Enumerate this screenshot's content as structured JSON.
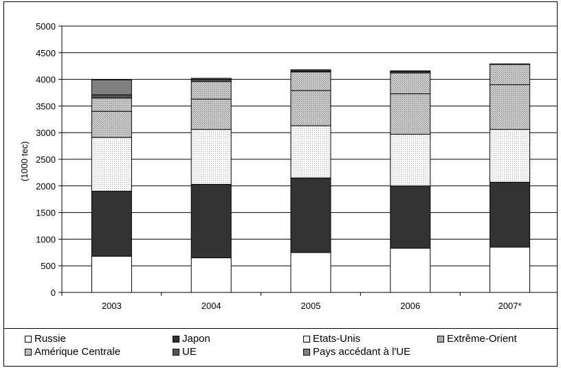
{
  "chart_data": {
    "type": "bar",
    "stacked": true,
    "title": "",
    "xlabel": "",
    "ylabel": "(1000 tec)",
    "ylim": [
      0,
      5000
    ],
    "yticks": [
      0,
      500,
      1000,
      1500,
      2000,
      2500,
      3000,
      3500,
      4000,
      4500,
      5000
    ],
    "categories": [
      "2003",
      "2004",
      "2005",
      "2006",
      "2007*"
    ],
    "grid": "horizontal",
    "legend_position": "bottom",
    "series": [
      {
        "name": "Russie",
        "color": "#ffffff",
        "pattern": "none",
        "values": [
          680,
          650,
          750,
          830,
          850
        ]
      },
      {
        "name": "Japon",
        "color": "#333333",
        "pattern": "none",
        "values": [
          1220,
          1380,
          1400,
          1170,
          1220
        ]
      },
      {
        "name": "Etats-Unis",
        "color": "#ffffff",
        "pattern": "dots",
        "values": [
          1010,
          1030,
          980,
          970,
          990
        ]
      },
      {
        "name": "Extrême-Orient",
        "color": "#bdbdbd",
        "pattern": "hatch",
        "values": [
          490,
          570,
          660,
          760,
          840
        ]
      },
      {
        "name": "Amérique Centrale",
        "color": "#d6d6d6",
        "pattern": "hatch",
        "values": [
          250,
          330,
          350,
          390,
          380
        ]
      },
      {
        "name": "UE",
        "color": "#555555",
        "pattern": "none",
        "values": [
          60,
          40,
          20,
          30,
          10
        ]
      },
      {
        "name": "Pays accédant à l'UE",
        "color": "#808080",
        "pattern": "none",
        "values": [
          280,
          20,
          20,
          10,
          0
        ]
      }
    ]
  }
}
